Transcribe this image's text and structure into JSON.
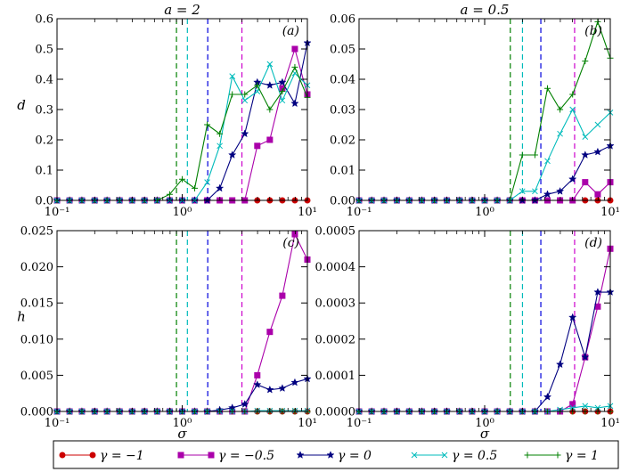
{
  "legend": [
    {
      "label": "γ = −1",
      "color": "#cc0000",
      "marker": "circle"
    },
    {
      "label": "γ = −0.5",
      "color": "#aa00aa",
      "marker": "square"
    },
    {
      "label": "γ = 0",
      "color": "#000080",
      "marker": "star"
    },
    {
      "label": "γ = 0.5",
      "color": "#00bbbb",
      "marker": "x"
    },
    {
      "label": "γ = 1",
      "color": "#008000",
      "marker": "plus"
    }
  ],
  "chart_data": [
    {
      "type": "line",
      "title": "a = 2",
      "panel_label": "(a)",
      "xlabel": "",
      "ylabel": "d",
      "xscale": "log",
      "xlim": [
        0.1,
        10
      ],
      "xticks": [
        "10⁻¹",
        "10⁰",
        "10¹"
      ],
      "ylim": [
        0,
        0.6
      ],
      "yticks": [
        "0.0",
        "0.1",
        "0.2",
        "0.3",
        "0.4",
        "0.5",
        "0.6"
      ],
      "vlines": [
        {
          "x": 0.9,
          "color": "#008000"
        },
        {
          "x": 1.1,
          "color": "#00bbbb"
        },
        {
          "x": 1.6,
          "color": "#0000dd"
        },
        {
          "x": 3.0,
          "color": "#cc00cc"
        }
      ],
      "x": [
        0.1,
        0.126,
        0.158,
        0.2,
        0.251,
        0.316,
        0.398,
        0.5,
        0.631,
        0.794,
        1.0,
        1.259,
        1.585,
        1.995,
        2.512,
        3.162,
        3.981,
        5.012,
        6.31,
        7.943,
        10.0
      ],
      "series": [
        {
          "values": [
            0,
            0,
            0,
            0,
            0,
            0,
            0,
            0,
            0,
            0,
            0,
            0,
            0,
            0,
            0,
            0,
            0,
            0,
            0,
            0,
            0
          ]
        },
        {
          "values": [
            0,
            0,
            0,
            0,
            0,
            0,
            0,
            0,
            0,
            0,
            0,
            0,
            0,
            0,
            0,
            0,
            0.18,
            0.2,
            0.37,
            0.5,
            0.35
          ]
        },
        {
          "values": [
            0,
            0,
            0,
            0,
            0,
            0,
            0,
            0,
            0,
            0,
            0,
            0,
            0,
            0.04,
            0.15,
            0.22,
            0.39,
            0.38,
            0.39,
            0.32,
            0.52
          ]
        },
        {
          "values": [
            0,
            0,
            0,
            0,
            0,
            0,
            0,
            0,
            0,
            0,
            0,
            0,
            0.06,
            0.18,
            0.41,
            0.33,
            0.36,
            0.45,
            0.33,
            0.42,
            0.38
          ]
        },
        {
          "values": [
            0,
            0,
            0,
            0,
            0,
            0,
            0,
            0,
            0,
            0.02,
            0.07,
            0.04,
            0.25,
            0.22,
            0.35,
            0.35,
            0.38,
            0.3,
            0.36,
            0.44,
            0.34
          ]
        }
      ]
    },
    {
      "type": "line",
      "title": "a = 0.5",
      "panel_label": "(b)",
      "xlabel": "",
      "ylabel": "",
      "xscale": "log",
      "xlim": [
        0.1,
        10
      ],
      "xticks": [
        "10⁻¹",
        "10⁰",
        "10¹"
      ],
      "ylim": [
        0,
        0.06
      ],
      "yticks": [
        "0.00",
        "0.01",
        "0.02",
        "0.03",
        "0.04",
        "0.05",
        "0.06"
      ],
      "vlines": [
        {
          "x": 1.6,
          "color": "#008000"
        },
        {
          "x": 2.0,
          "color": "#00bbbb"
        },
        {
          "x": 2.8,
          "color": "#0000dd"
        },
        {
          "x": 5.2,
          "color": "#cc00cc"
        }
      ],
      "x": [
        0.1,
        0.126,
        0.158,
        0.2,
        0.251,
        0.316,
        0.398,
        0.5,
        0.631,
        0.794,
        1.0,
        1.259,
        1.585,
        1.995,
        2.512,
        3.162,
        3.981,
        5.012,
        6.31,
        7.943,
        10.0
      ],
      "series": [
        {
          "values": [
            0,
            0,
            0,
            0,
            0,
            0,
            0,
            0,
            0,
            0,
            0,
            0,
            0,
            0,
            0,
            0,
            0,
            0,
            0,
            0,
            0
          ]
        },
        {
          "values": [
            0,
            0,
            0,
            0,
            0,
            0,
            0,
            0,
            0,
            0,
            0,
            0,
            0,
            0,
            0,
            0,
            0,
            0,
            0.006,
            0.002,
            0.006
          ]
        },
        {
          "values": [
            0,
            0,
            0,
            0,
            0,
            0,
            0,
            0,
            0,
            0,
            0,
            0,
            0,
            0,
            0,
            0.002,
            0.003,
            0.007,
            0.015,
            0.016,
            0.018
          ]
        },
        {
          "values": [
            0,
            0,
            0,
            0,
            0,
            0,
            0,
            0,
            0,
            0,
            0,
            0,
            0,
            0.003,
            0.003,
            0.013,
            0.022,
            0.03,
            0.021,
            0.025,
            0.029
          ]
        },
        {
          "values": [
            0,
            0,
            0,
            0,
            0,
            0,
            0,
            0,
            0,
            0,
            0,
            0,
            0,
            0.015,
            0.015,
            0.037,
            0.03,
            0.035,
            0.046,
            0.059,
            0.047
          ]
        }
      ]
    },
    {
      "type": "line",
      "title": "",
      "panel_label": "(c)",
      "xlabel": "σ",
      "ylabel": "h",
      "xscale": "log",
      "xlim": [
        0.1,
        10
      ],
      "xticks": [
        "10⁻¹",
        "10⁰",
        "10¹"
      ],
      "ylim": [
        0,
        0.025
      ],
      "yticks": [
        "0.000",
        "0.005",
        "0.010",
        "0.015",
        "0.020",
        "0.025"
      ],
      "vlines": [
        {
          "x": 0.9,
          "color": "#008000"
        },
        {
          "x": 1.1,
          "color": "#00bbbb"
        },
        {
          "x": 1.6,
          "color": "#0000dd"
        },
        {
          "x": 3.0,
          "color": "#cc00cc"
        }
      ],
      "x": [
        0.1,
        0.126,
        0.158,
        0.2,
        0.251,
        0.316,
        0.398,
        0.5,
        0.631,
        0.794,
        1.0,
        1.259,
        1.585,
        1.995,
        2.512,
        3.162,
        3.981,
        5.012,
        6.31,
        7.943,
        10.0
      ],
      "series": [
        {
          "values": [
            0,
            0,
            0,
            0,
            0,
            0,
            0,
            0,
            0,
            0,
            0,
            0,
            0,
            0,
            0,
            0,
            0,
            0,
            0,
            0,
            0
          ]
        },
        {
          "values": [
            0,
            0,
            0,
            0,
            0,
            0,
            0,
            0,
            0,
            0,
            0,
            0,
            0,
            0,
            0,
            0,
            0.005,
            0.011,
            0.016,
            0.0245,
            0.021
          ]
        },
        {
          "values": [
            0,
            0,
            0,
            0,
            0,
            0,
            0,
            0,
            0,
            0,
            0,
            0,
            0,
            0.0002,
            0.0005,
            0.001,
            0.0037,
            0.003,
            0.0032,
            0.004,
            0.0045
          ]
        },
        {
          "values": [
            0,
            0,
            0,
            0,
            0,
            0,
            0,
            0,
            0,
            0,
            0,
            0,
            0,
            0,
            0,
            0,
            0.0001,
            0.0001,
            0.0001,
            0.0001,
            0.0001
          ]
        },
        {
          "values": [
            0,
            0,
            0,
            0,
            0,
            0,
            0,
            0,
            0,
            0,
            0,
            0,
            0,
            0,
            0,
            0,
            0,
            0,
            0,
            0,
            0
          ]
        }
      ]
    },
    {
      "type": "line",
      "title": "",
      "panel_label": "(d)",
      "xlabel": "σ",
      "ylabel": "",
      "xscale": "log",
      "xlim": [
        0.1,
        10
      ],
      "xticks": [
        "10⁻¹",
        "10⁰",
        "10¹"
      ],
      "ylim": [
        0,
        0.0005
      ],
      "yticks": [
        "0.0000",
        "0.0001",
        "0.0002",
        "0.0003",
        "0.0004",
        "0.0005"
      ],
      "vlines": [
        {
          "x": 1.6,
          "color": "#008000"
        },
        {
          "x": 2.0,
          "color": "#00bbbb"
        },
        {
          "x": 2.8,
          "color": "#0000dd"
        },
        {
          "x": 5.2,
          "color": "#cc00cc"
        }
      ],
      "x": [
        0.1,
        0.126,
        0.158,
        0.2,
        0.251,
        0.316,
        0.398,
        0.5,
        0.631,
        0.794,
        1.0,
        1.259,
        1.585,
        1.995,
        2.512,
        3.162,
        3.981,
        5.012,
        6.31,
        7.943,
        10.0
      ],
      "series": [
        {
          "values": [
            0,
            0,
            0,
            0,
            0,
            0,
            0,
            0,
            0,
            0,
            0,
            0,
            0,
            0,
            0,
            0,
            0,
            0,
            0,
            0,
            0
          ]
        },
        {
          "values": [
            0,
            0,
            0,
            0,
            0,
            0,
            0,
            0,
            0,
            0,
            0,
            0,
            0,
            0,
            0,
            0,
            0,
            2e-05,
            0.00015,
            0.00029,
            0.00045
          ]
        },
        {
          "values": [
            0,
            0,
            0,
            0,
            0,
            0,
            0,
            0,
            0,
            0,
            0,
            0,
            0,
            0,
            0,
            4e-05,
            0.00013,
            0.00026,
            0.00015,
            0.00033,
            0.00033
          ]
        },
        {
          "values": [
            0,
            0,
            0,
            0,
            0,
            0,
            0,
            0,
            0,
            0,
            0,
            0,
            0,
            0,
            0,
            0,
            5e-06,
            1e-05,
            1.5e-05,
            1e-05,
            1.5e-05
          ]
        },
        {
          "values": [
            0,
            0,
            0,
            0,
            0,
            0,
            0,
            0,
            0,
            0,
            0,
            0,
            0,
            0,
            0,
            0,
            0,
            0,
            0,
            0,
            0
          ]
        }
      ]
    }
  ]
}
